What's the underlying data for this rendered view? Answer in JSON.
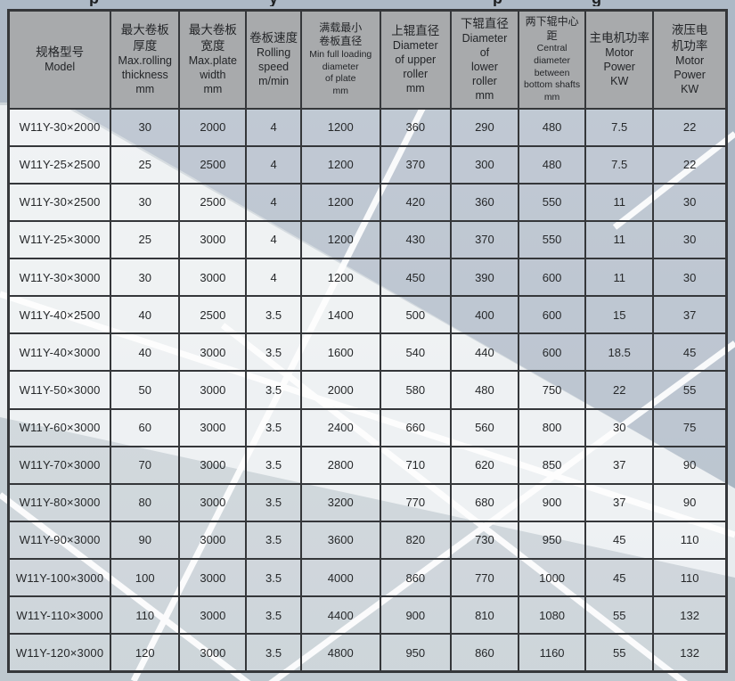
{
  "page": {
    "top_edge_fragments": [
      "p",
      "y",
      "p",
      "g"
    ]
  },
  "colors": {
    "header_bg": "#a8aaac",
    "border": "#35373a",
    "cell_veil": "rgba(255,255,255,0.24)",
    "base_top": "#ced5da",
    "base_bottom": "#bec8cf",
    "dark_band": "#8fa0b4",
    "light_band": "#f4f6f7",
    "white_line": "#ffffff",
    "text": "#26282a"
  },
  "table": {
    "columns": [
      {
        "id": "model",
        "lines": [
          "规格型号",
          "Model"
        ],
        "small": false
      },
      {
        "id": "max-thickness",
        "lines": [
          "最大卷板",
          "厚度",
          "Max.rolling",
          "thickness",
          "mm"
        ],
        "small": false
      },
      {
        "id": "max-width",
        "lines": [
          "最大卷板",
          "宽度",
          "Max.plate",
          "width",
          "mm"
        ],
        "small": false
      },
      {
        "id": "rolling-speed",
        "lines": [
          "卷板速度",
          "Rolling",
          "speed",
          "m/min"
        ],
        "small": false
      },
      {
        "id": "min-diameter",
        "lines": [
          "满载最小",
          "卷板直径",
          "Min full loading",
          "diameter",
          "of plate",
          "mm"
        ],
        "small": true
      },
      {
        "id": "upper-roller",
        "lines": [
          "上辊直径",
          "Diameter",
          "of upper",
          "roller",
          "mm"
        ],
        "small": false
      },
      {
        "id": "lower-roller",
        "lines": [
          "下辊直径",
          "Diameter",
          "of",
          "lower",
          "roller",
          "mm"
        ],
        "small": false
      },
      {
        "id": "center-distance",
        "lines": [
          "两下辊中心距",
          "Central",
          "diameter",
          "between",
          "bottom shafts",
          "mm"
        ],
        "small": true
      },
      {
        "id": "main-motor-power",
        "lines": [
          "主电机功率",
          "Motor",
          "Power",
          "KW"
        ],
        "small": false
      },
      {
        "id": "hydraulic-motor-power",
        "lines": [
          "液压电",
          "机功率",
          "Motor",
          "Power",
          "KW"
        ],
        "small": false
      }
    ],
    "rows": [
      [
        "W11Y-30×2000",
        "30",
        "2000",
        "4",
        "1200",
        "360",
        "290",
        "480",
        "7.5",
        "22"
      ],
      [
        "W11Y-25×2500",
        "25",
        "2500",
        "4",
        "1200",
        "370",
        "300",
        "480",
        "7.5",
        "22"
      ],
      [
        "W11Y-30×2500",
        "30",
        "2500",
        "4",
        "1200",
        "420",
        "360",
        "550",
        "11",
        "30"
      ],
      [
        "W11Y-25×3000",
        "25",
        "3000",
        "4",
        "1200",
        "430",
        "370",
        "550",
        "11",
        "30"
      ],
      [
        "W11Y-30×3000",
        "30",
        "3000",
        "4",
        "1200",
        "450",
        "390",
        "600",
        "11",
        "30"
      ],
      [
        "W11Y-40×2500",
        "40",
        "2500",
        "3.5",
        "1400",
        "500",
        "400",
        "600",
        "15",
        "37"
      ],
      [
        "W11Y-40×3000",
        "40",
        "3000",
        "3.5",
        "1600",
        "540",
        "440",
        "600",
        "18.5",
        "45"
      ],
      [
        "W11Y-50×3000",
        "50",
        "3000",
        "3.5",
        "2000",
        "580",
        "480",
        "750",
        "22",
        "55"
      ],
      [
        "W11Y-60×3000",
        "60",
        "3000",
        "3.5",
        "2400",
        "660",
        "560",
        "800",
        "30",
        "75"
      ],
      [
        "W11Y-70×3000",
        "70",
        "3000",
        "3.5",
        "2800",
        "710",
        "620",
        "850",
        "37",
        "90"
      ],
      [
        "W11Y-80×3000",
        "80",
        "3000",
        "3.5",
        "3200",
        "770",
        "680",
        "900",
        "37",
        "90"
      ],
      [
        "W11Y-90×3000",
        "90",
        "3000",
        "3.5",
        "3600",
        "820",
        "730",
        "950",
        "45",
        "110"
      ],
      [
        "W11Y-100×3000",
        "100",
        "3000",
        "3.5",
        "4000",
        "860",
        "770",
        "1000",
        "45",
        "110"
      ],
      [
        "W11Y-110×3000",
        "110",
        "3000",
        "3.5",
        "4400",
        "900",
        "810",
        "1080",
        "55",
        "132"
      ],
      [
        "W11Y-120×3000",
        "120",
        "3000",
        "3.5",
        "4800",
        "950",
        "860",
        "1160",
        "55",
        "132"
      ]
    ]
  }
}
